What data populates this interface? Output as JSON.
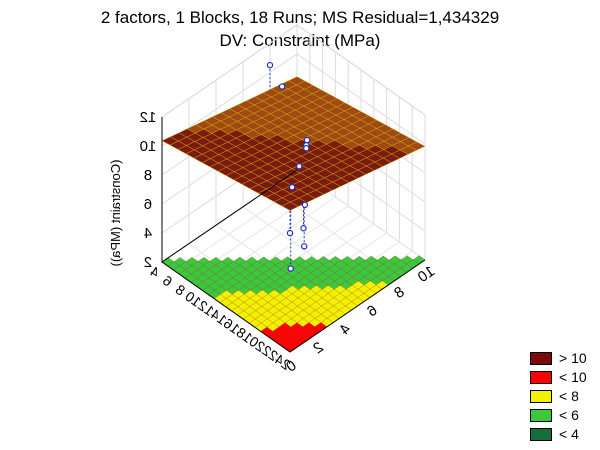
{
  "chart_data": {
    "type": "surface3d",
    "title": "2 factors, 1 Blocks, 18 Runs; MS Residual=1,434329",
    "subtitle": "DV: Constraint (MPa)",
    "zlabel": "(Constraint (MPa))",
    "zticks": [
      "2",
      "4",
      "6",
      "8",
      "10",
      "12"
    ],
    "xticks": [
      "4",
      "6",
      "8",
      "10",
      "12",
      "14",
      "16",
      "18",
      "20",
      "22",
      "24"
    ],
    "yticks": [
      "0",
      "2",
      "4",
      "6",
      "8",
      "10"
    ],
    "legend": {
      "position": "bottom-right",
      "entries": [
        {
          "label": "> 10",
          "color": "#7a0b0b"
        },
        {
          "label": "< 10",
          "color": "#ff0000"
        },
        {
          "label": "< 8",
          "color": "#f2f200"
        },
        {
          "label": "< 6",
          "color": "#3cc83c"
        },
        {
          "label": "< 4",
          "color": "#146e3a"
        }
      ]
    },
    "points": [
      {
        "x": 4,
        "y": 8,
        "z": 10.5
      },
      {
        "x": 8,
        "y": 7,
        "z": 10.9
      },
      {
        "x": 14,
        "y": 6,
        "z": 9.7
      },
      {
        "x": 16,
        "y": 5,
        "z": 10.6
      },
      {
        "x": 16,
        "y": 5,
        "z": 10.4
      },
      {
        "x": 17,
        "y": 4,
        "z": 10.1
      },
      {
        "x": 18,
        "y": 3,
        "z": 9.6
      },
      {
        "x": 20,
        "y": 3,
        "z": 9.0
      },
      {
        "x": 22,
        "y": 2,
        "z": 7.4
      },
      {
        "x": 22,
        "y": 1,
        "z": 6.5
      },
      {
        "x": 24,
        "y": 1,
        "z": 9.9
      },
      {
        "x": 24,
        "y": 0,
        "z": 10.2
      }
    ]
  }
}
